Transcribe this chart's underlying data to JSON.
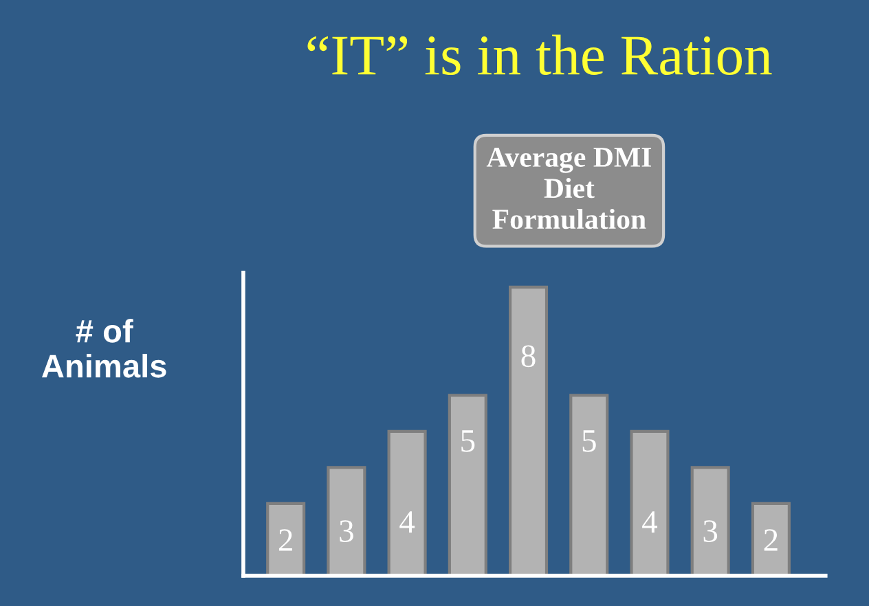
{
  "chart_data": {
    "type": "bar",
    "title": "“IT” is in the Ration",
    "ylabel": "# of\nAnimals",
    "categories": [
      null,
      null,
      null,
      null,
      null,
      null,
      null,
      null,
      null
    ],
    "values": [
      2,
      3,
      4,
      5,
      8,
      5,
      4,
      3,
      2
    ],
    "color": "#b3b3b3",
    "data_labels": true,
    "tick_labels": false,
    "grid": false,
    "legend": false,
    "annotations": [
      "Average DMI\nDiet\nFormulation"
    ]
  }
}
